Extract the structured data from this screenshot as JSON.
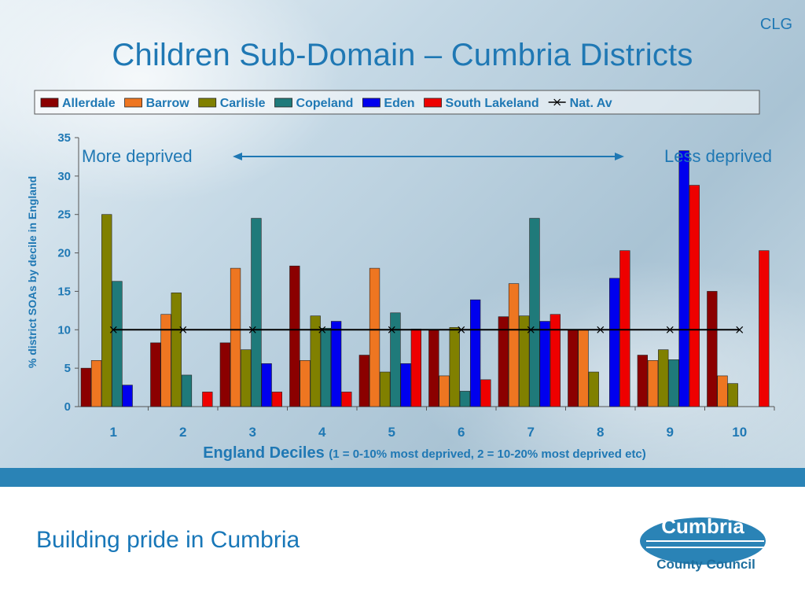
{
  "header": {
    "tag": "CLG",
    "title": "Children Sub-Domain – Cumbria Districts"
  },
  "footer": {
    "tagline": "Building pride in Cumbria"
  },
  "logo": {
    "line1": "Cumbria",
    "line2": "County Council"
  },
  "colors": {
    "Allerdale": "#8b0000",
    "Barrow": "#ee7621",
    "Carlisle": "#808000",
    "Copeland": "#1f7a7a",
    "Eden": "#0000ee",
    "South Lakeland": "#ee0000",
    "Nat. Av": "#000000",
    "accent": "#1f78b4",
    "band": "#2a83b6"
  },
  "chart_data": {
    "type": "bar",
    "categories": [
      "1",
      "2",
      "3",
      "4",
      "5",
      "6",
      "7",
      "8",
      "9",
      "10"
    ],
    "series": [
      {
        "name": "Allerdale",
        "values": [
          5,
          8.3,
          8.3,
          18.3,
          6.7,
          10,
          11.7,
          10,
          6.7,
          15
        ]
      },
      {
        "name": "Barrow",
        "values": [
          6,
          12,
          18,
          6,
          18,
          4,
          16,
          10,
          6,
          4
        ]
      },
      {
        "name": "Carlisle",
        "values": [
          25,
          14.8,
          7.4,
          11.8,
          4.5,
          10.3,
          11.8,
          4.5,
          7.4,
          3
        ]
      },
      {
        "name": "Copeland",
        "values": [
          16.3,
          4.1,
          24.5,
          10.2,
          12.2,
          2,
          24.5,
          0,
          6.1,
          0
        ]
      },
      {
        "name": "Eden",
        "values": [
          2.8,
          0,
          5.6,
          11.1,
          5.6,
          13.9,
          11.1,
          16.7,
          33.3,
          0
        ]
      },
      {
        "name": "South Lakeland",
        "values": [
          0,
          1.9,
          1.9,
          1.9,
          10.1,
          3.5,
          12,
          20.3,
          28.8,
          20.3
        ]
      }
    ],
    "line_series": {
      "name": "Nat. Av",
      "values": [
        10,
        10,
        10,
        10,
        10,
        10,
        10,
        10,
        10,
        10
      ]
    },
    "ylabel": "% district SOAs by decile in England",
    "xlabel": "England Deciles",
    "xlabel_note": "(1 = 0-10% most deprived, 2 = 10-20% most deprived etc)",
    "ylim": [
      0,
      35
    ],
    "yticks": [
      "0",
      "5",
      "10",
      "15",
      "20",
      "25",
      "30",
      "35"
    ],
    "annotation_left": "More deprived",
    "annotation_right": "Less deprived",
    "legend_position": "top",
    "grid": false
  }
}
